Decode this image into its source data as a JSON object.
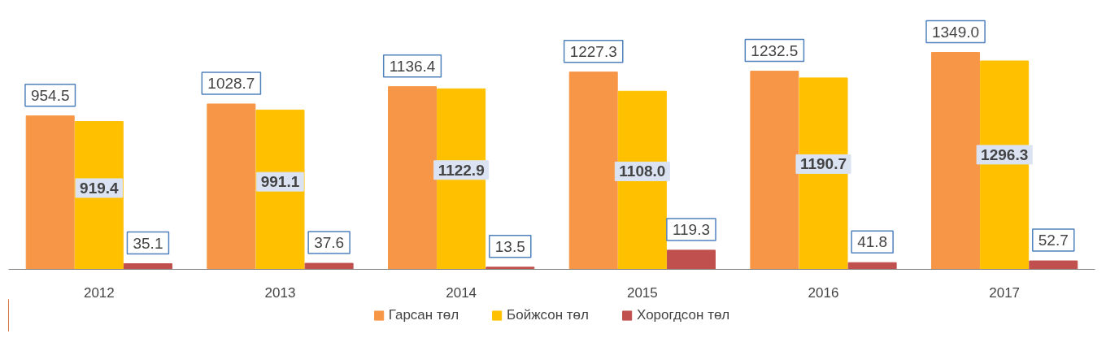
{
  "chart_data": {
    "type": "bar",
    "categories": [
      "2012",
      "2013",
      "2014",
      "2015",
      "2016",
      "2017"
    ],
    "series": [
      {
        "name": "Гарсан төл",
        "color": "#f79646",
        "values": [
          954.5,
          1028.7,
          1136.4,
          1227.3,
          1232.5,
          1349.0
        ],
        "value_labels": [
          "954.5",
          "1028.7",
          "1136.4",
          "1227.3",
          "1232.5",
          "1349.0"
        ]
      },
      {
        "name": "Бойжсон төл",
        "color": "#ffc000",
        "values": [
          919.4,
          991.1,
          1122.9,
          1108.0,
          1190.7,
          1296.3
        ],
        "value_labels": [
          "919.4",
          "991.1",
          "1122.9",
          "1108.0",
          "1190.7",
          "1296.3"
        ]
      },
      {
        "name": "Хорогдсон төл",
        "color": "#c0504d",
        "values": [
          35.1,
          37.6,
          13.5,
          119.3,
          41.8,
          52.7
        ],
        "value_labels": [
          "35.1",
          "37.6",
          "13.5",
          "119.3",
          "41.8",
          "52.7"
        ]
      }
    ],
    "legend": "bottom"
  }
}
